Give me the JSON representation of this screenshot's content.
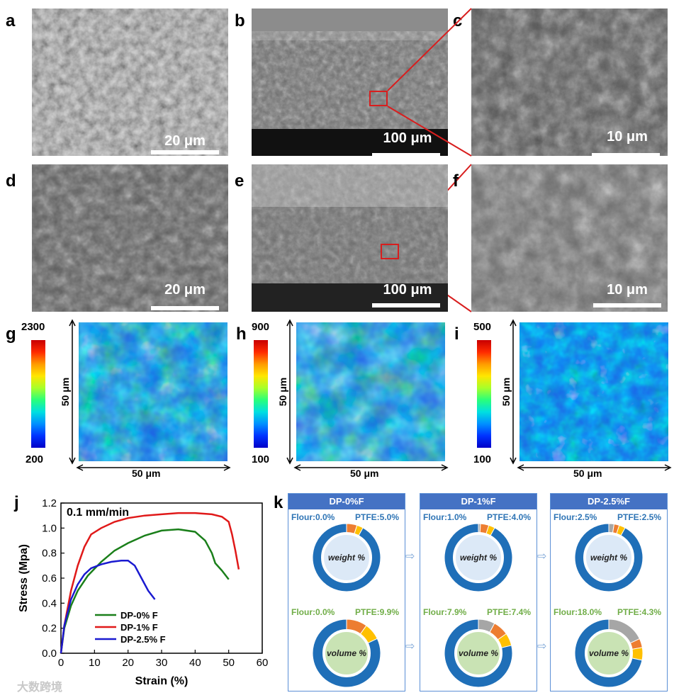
{
  "panels": {
    "a": {
      "label": "a",
      "scale": "20 μm"
    },
    "b": {
      "label": "b",
      "scale": "100 μm"
    },
    "c": {
      "label": "c",
      "scale": "10 μm"
    },
    "d": {
      "label": "d",
      "scale": "20 μm"
    },
    "e": {
      "label": "e",
      "scale": "100 μm"
    },
    "f": {
      "label": "f",
      "scale": "10 μm"
    },
    "g": {
      "label": "g",
      "cmax": "2300",
      "cmin": "200",
      "side": "50 μm",
      "bottom": "50 μm"
    },
    "h": {
      "label": "h",
      "cmax": "900",
      "cmin": "100",
      "side": "50 μm",
      "bottom": "50 μm"
    },
    "i": {
      "label": "i",
      "cmax": "500",
      "cmin": "100",
      "side": "50 μm",
      "bottom": "50 μm"
    },
    "j": {
      "label": "j"
    },
    "k": {
      "label": "k"
    }
  },
  "chart_data": {
    "type": "line",
    "annotation": "0.1 mm/min",
    "xlabel": "Strain (%)",
    "ylabel": "Stress (Mpa)",
    "xlim": [
      0,
      60
    ],
    "ylim": [
      0,
      1.2
    ],
    "xticks": [
      "0",
      "10",
      "20",
      "30",
      "40",
      "50",
      "60"
    ],
    "yticks": [
      "0.0",
      "0.2",
      "0.4",
      "0.6",
      "0.8",
      "1.0",
      "1.2"
    ],
    "legend_position": "bottom-center",
    "series": [
      {
        "name": "DP-0% F",
        "color": "#1a7f1a",
        "points": [
          [
            0,
            0
          ],
          [
            1,
            0.2
          ],
          [
            3,
            0.38
          ],
          [
            5,
            0.5
          ],
          [
            8,
            0.62
          ],
          [
            12,
            0.73
          ],
          [
            16,
            0.82
          ],
          [
            20,
            0.88
          ],
          [
            25,
            0.94
          ],
          [
            30,
            0.98
          ],
          [
            35,
            0.99
          ],
          [
            40,
            0.97
          ],
          [
            43,
            0.9
          ],
          [
            45,
            0.8
          ],
          [
            46,
            0.72
          ],
          [
            48,
            0.66
          ],
          [
            50,
            0.59
          ]
        ]
      },
      {
        "name": "DP-1% F",
        "color": "#e01919",
        "points": [
          [
            0,
            0
          ],
          [
            1,
            0.22
          ],
          [
            3,
            0.5
          ],
          [
            5,
            0.7
          ],
          [
            7,
            0.85
          ],
          [
            9,
            0.95
          ],
          [
            12,
            1.0
          ],
          [
            16,
            1.05
          ],
          [
            20,
            1.08
          ],
          [
            25,
            1.1
          ],
          [
            30,
            1.11
          ],
          [
            35,
            1.12
          ],
          [
            40,
            1.12
          ],
          [
            45,
            1.11
          ],
          [
            48,
            1.09
          ],
          [
            50,
            1.05
          ],
          [
            51,
            0.95
          ],
          [
            52,
            0.82
          ],
          [
            53,
            0.67
          ]
        ]
      },
      {
        "name": "DP-2.5% F",
        "color": "#1a1ad0",
        "points": [
          [
            0,
            0
          ],
          [
            1,
            0.22
          ],
          [
            3,
            0.43
          ],
          [
            5,
            0.55
          ],
          [
            7,
            0.63
          ],
          [
            9,
            0.68
          ],
          [
            12,
            0.71
          ],
          [
            15,
            0.73
          ],
          [
            18,
            0.74
          ],
          [
            20,
            0.74
          ],
          [
            22,
            0.7
          ],
          [
            24,
            0.6
          ],
          [
            26,
            0.5
          ],
          [
            28,
            0.43
          ]
        ]
      }
    ]
  },
  "donuts": [
    {
      "title": "DP-0%F",
      "w_flour": "Flour:0.0%",
      "w_ptfe": "PTFE:5.0%",
      "w_label": "weight %",
      "v_flour": "Flour:0.0%",
      "v_ptfe": "PTFE:9.9%",
      "v_label": "volume  %",
      "weight": [
        0,
        5,
        3,
        92
      ],
      "volume": [
        0,
        9.9,
        8,
        82.1
      ]
    },
    {
      "title": "DP-1%F",
      "w_flour": "Flour:1.0%",
      "w_ptfe": "PTFE:4.0%",
      "w_label": "weight %",
      "v_flour": "Flour:7.9%",
      "v_ptfe": "PTFE:7.4%",
      "v_label": "volume %",
      "weight": [
        1,
        4,
        3,
        92
      ],
      "volume": [
        7.9,
        7.4,
        6,
        78.7
      ]
    },
    {
      "title": "DP-2.5%F",
      "w_flour": "Flour:2.5%",
      "w_ptfe": "PTFE:2.5%",
      "w_label": "weight  %",
      "v_flour": "Flour:18.0%",
      "v_ptfe": "PTFE:4.3%",
      "v_label": "volume %",
      "weight": [
        2.5,
        2.5,
        3,
        92
      ],
      "volume": [
        18,
        4.3,
        6,
        71.7
      ]
    }
  ],
  "donut_colors": [
    "#a6a6a6",
    "#ed7d31",
    "#ffc000",
    "#1f6fb8"
  ],
  "watermark": "大数跨境"
}
